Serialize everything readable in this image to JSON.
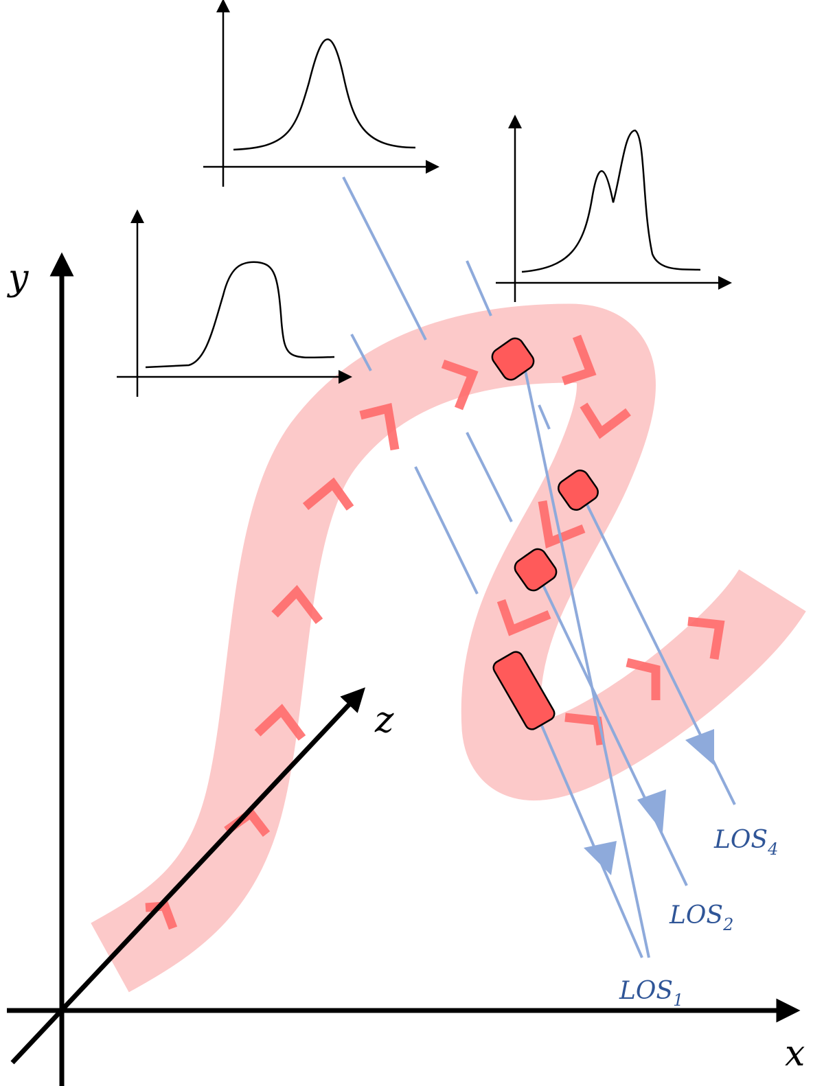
{
  "axes": {
    "x": "x",
    "y": "y",
    "z": "z"
  },
  "lines_of_sight": [
    {
      "name": "LOS",
      "subscript": "1"
    },
    {
      "name": "LOS",
      "subscript": "2"
    },
    {
      "name": "LOS",
      "subscript": "4"
    }
  ]
}
